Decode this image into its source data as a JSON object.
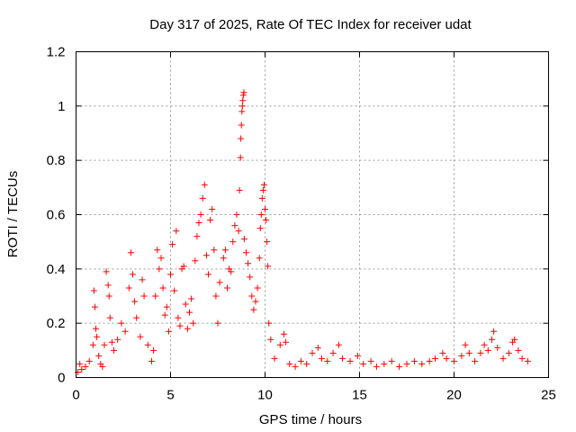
{
  "chart_data": {
    "type": "scatter",
    "title": "Day 317 of 2025, Rate Of TEC Index for receiver udat",
    "xlabel": "GPS time / hours",
    "ylabel": "ROTI / TECUs",
    "xlim": [
      0,
      25
    ],
    "ylim": [
      0,
      1.2
    ],
    "x_ticks": [
      0,
      5,
      10,
      15,
      20,
      25
    ],
    "x_tick_labels": [
      "0",
      "5",
      "10",
      "15",
      "20",
      "25"
    ],
    "y_ticks": [
      0,
      0.2,
      0.4,
      0.6,
      0.8,
      1.0,
      1.2
    ],
    "y_tick_labels": [
      "0",
      "0.2",
      "0.4",
      "0.6",
      "0.8",
      "1",
      "1.2"
    ],
    "grid": true,
    "marker": "+",
    "series": [
      {
        "color": "#ff0000",
        "points": [
          [
            0.1,
            0.02
          ],
          [
            0.2,
            0.05
          ],
          [
            0.3,
            0.03
          ],
          [
            0.5,
            0.04
          ],
          [
            0.7,
            0.06
          ],
          [
            0.9,
            0.12
          ],
          [
            0.95,
            0.32
          ],
          [
            1.0,
            0.26
          ],
          [
            1.05,
            0.18
          ],
          [
            1.1,
            0.15
          ],
          [
            1.2,
            0.08
          ],
          [
            1.3,
            0.05
          ],
          [
            1.4,
            0.04
          ],
          [
            1.5,
            0.12
          ],
          [
            1.6,
            0.39
          ],
          [
            1.7,
            0.34
          ],
          [
            1.75,
            0.3
          ],
          [
            1.8,
            0.22
          ],
          [
            1.9,
            0.13
          ],
          [
            2.0,
            0.1
          ],
          [
            2.2,
            0.14
          ],
          [
            2.4,
            0.2
          ],
          [
            2.6,
            0.17
          ],
          [
            2.8,
            0.33
          ],
          [
            2.9,
            0.46
          ],
          [
            3.0,
            0.38
          ],
          [
            3.1,
            0.28
          ],
          [
            3.2,
            0.22
          ],
          [
            3.4,
            0.15
          ],
          [
            3.5,
            0.36
          ],
          [
            3.6,
            0.3
          ],
          [
            3.8,
            0.12
          ],
          [
            4.0,
            0.06
          ],
          [
            4.1,
            0.1
          ],
          [
            4.2,
            0.3
          ],
          [
            4.3,
            0.47
          ],
          [
            4.4,
            0.4
          ],
          [
            4.5,
            0.44
          ],
          [
            4.6,
            0.33
          ],
          [
            4.7,
            0.23
          ],
          [
            4.8,
            0.26
          ],
          [
            4.9,
            0.17
          ],
          [
            5.0,
            0.38
          ],
          [
            5.1,
            0.49
          ],
          [
            5.2,
            0.32
          ],
          [
            5.3,
            0.54
          ],
          [
            5.4,
            0.22
          ],
          [
            5.5,
            0.19
          ],
          [
            5.6,
            0.4
          ],
          [
            5.7,
            0.41
          ],
          [
            5.8,
            0.27
          ],
          [
            5.9,
            0.18
          ],
          [
            6.0,
            0.24
          ],
          [
            6.1,
            0.29
          ],
          [
            6.2,
            0.2
          ],
          [
            6.3,
            0.43
          ],
          [
            6.4,
            0.52
          ],
          [
            6.5,
            0.57
          ],
          [
            6.6,
            0.6
          ],
          [
            6.7,
            0.66
          ],
          [
            6.8,
            0.71
          ],
          [
            6.9,
            0.45
          ],
          [
            7.0,
            0.38
          ],
          [
            7.1,
            0.58
          ],
          [
            7.2,
            0.62
          ],
          [
            7.3,
            0.47
          ],
          [
            7.4,
            0.3
          ],
          [
            7.5,
            0.2
          ],
          [
            7.6,
            0.35
          ],
          [
            7.8,
            0.44
          ],
          [
            7.9,
            0.47
          ],
          [
            8.0,
            0.33
          ],
          [
            8.1,
            0.4
          ],
          [
            8.2,
            0.39
          ],
          [
            8.3,
            0.5
          ],
          [
            8.4,
            0.56
          ],
          [
            8.5,
            0.6
          ],
          [
            8.6,
            0.54
          ],
          [
            8.65,
            0.69
          ],
          [
            8.7,
            0.81
          ],
          [
            8.72,
            0.88
          ],
          [
            8.75,
            0.93
          ],
          [
            8.78,
            0.98
          ],
          [
            8.8,
            1.0
          ],
          [
            8.82,
            1.02
          ],
          [
            8.85,
            1.04
          ],
          [
            8.88,
            1.05
          ],
          [
            8.9,
            0.51
          ],
          [
            9.0,
            0.46
          ],
          [
            9.1,
            0.42
          ],
          [
            9.2,
            0.37
          ],
          [
            9.3,
            0.3
          ],
          [
            9.4,
            0.25
          ],
          [
            9.5,
            0.28
          ],
          [
            9.6,
            0.33
          ],
          [
            9.7,
            0.44
          ],
          [
            9.75,
            0.55
          ],
          [
            9.8,
            0.6
          ],
          [
            9.85,
            0.66
          ],
          [
            9.9,
            0.69
          ],
          [
            9.95,
            0.71
          ],
          [
            10.0,
            0.62
          ],
          [
            10.05,
            0.58
          ],
          [
            10.1,
            0.5
          ],
          [
            10.15,
            0.41
          ],
          [
            10.2,
            0.2
          ],
          [
            10.3,
            0.14
          ],
          [
            10.5,
            0.07
          ],
          [
            10.8,
            0.12
          ],
          [
            11.0,
            0.16
          ],
          [
            11.1,
            0.13
          ],
          [
            11.3,
            0.05
          ],
          [
            11.6,
            0.04
          ],
          [
            11.9,
            0.06
          ],
          [
            12.2,
            0.05
          ],
          [
            12.5,
            0.09
          ],
          [
            12.8,
            0.11
          ],
          [
            13.0,
            0.07
          ],
          [
            13.3,
            0.06
          ],
          [
            13.6,
            0.09
          ],
          [
            13.9,
            0.12
          ],
          [
            14.1,
            0.07
          ],
          [
            14.5,
            0.06
          ],
          [
            14.9,
            0.08
          ],
          [
            15.2,
            0.05
          ],
          [
            15.6,
            0.06
          ],
          [
            15.9,
            0.04
          ],
          [
            16.3,
            0.05
          ],
          [
            16.7,
            0.06
          ],
          [
            17.1,
            0.04
          ],
          [
            17.5,
            0.05
          ],
          [
            17.9,
            0.06
          ],
          [
            18.3,
            0.05
          ],
          [
            18.7,
            0.06
          ],
          [
            19.0,
            0.07
          ],
          [
            19.4,
            0.09
          ],
          [
            19.6,
            0.07
          ],
          [
            20.0,
            0.06
          ],
          [
            20.4,
            0.08
          ],
          [
            20.6,
            0.12
          ],
          [
            20.8,
            0.09
          ],
          [
            21.1,
            0.06
          ],
          [
            21.4,
            0.09
          ],
          [
            21.6,
            0.12
          ],
          [
            21.8,
            0.1
          ],
          [
            22.0,
            0.14
          ],
          [
            22.1,
            0.17
          ],
          [
            22.3,
            0.11
          ],
          [
            22.6,
            0.07
          ],
          [
            22.9,
            0.09
          ],
          [
            23.1,
            0.13
          ],
          [
            23.2,
            0.14
          ],
          [
            23.4,
            0.1
          ],
          [
            23.6,
            0.07
          ],
          [
            23.9,
            0.06
          ]
        ]
      }
    ]
  }
}
